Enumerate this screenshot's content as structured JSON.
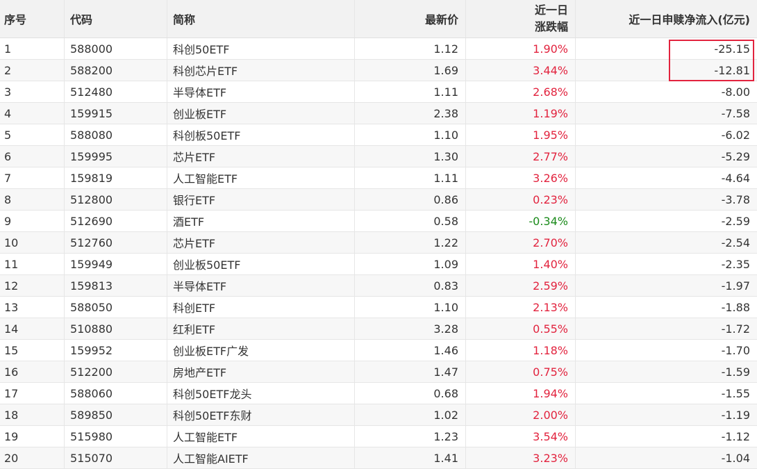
{
  "header": {
    "idx": "序号",
    "code": "代码",
    "name": "简称",
    "price": "最新价",
    "change_line1": "近一日",
    "change_line2": "涨跌幅",
    "flow": "近一日申赎净流入(亿元)"
  },
  "colors": {
    "up": "#e2233e",
    "down": "#1a8a1a",
    "highlight": "#e2233e"
  },
  "rows": [
    {
      "idx": "1",
      "code": "588000",
      "name": "科创50ETF",
      "price": "1.12",
      "change": "1.90%",
      "dir": "up",
      "flow": "-25.15"
    },
    {
      "idx": "2",
      "code": "588200",
      "name": "科创芯片ETF",
      "price": "1.69",
      "change": "3.44%",
      "dir": "up",
      "flow": "-12.81"
    },
    {
      "idx": "3",
      "code": "512480",
      "name": "半导体ETF",
      "price": "1.11",
      "change": "2.68%",
      "dir": "up",
      "flow": "-8.00"
    },
    {
      "idx": "4",
      "code": "159915",
      "name": "创业板ETF",
      "price": "2.38",
      "change": "1.19%",
      "dir": "up",
      "flow": "-7.58"
    },
    {
      "idx": "5",
      "code": "588080",
      "name": "科创板50ETF",
      "price": "1.10",
      "change": "1.95%",
      "dir": "up",
      "flow": "-6.02"
    },
    {
      "idx": "6",
      "code": "159995",
      "name": "芯片ETF",
      "price": "1.30",
      "change": "2.77%",
      "dir": "up",
      "flow": "-5.29"
    },
    {
      "idx": "7",
      "code": "159819",
      "name": "人工智能ETF",
      "price": "1.11",
      "change": "3.26%",
      "dir": "up",
      "flow": "-4.64"
    },
    {
      "idx": "8",
      "code": "512800",
      "name": "银行ETF",
      "price": "0.86",
      "change": "0.23%",
      "dir": "up",
      "flow": "-3.78"
    },
    {
      "idx": "9",
      "code": "512690",
      "name": "酒ETF",
      "price": "0.58",
      "change": "-0.34%",
      "dir": "down",
      "flow": "-2.59"
    },
    {
      "idx": "10",
      "code": "512760",
      "name": "芯片ETF",
      "price": "1.22",
      "change": "2.70%",
      "dir": "up",
      "flow": "-2.54"
    },
    {
      "idx": "11",
      "code": "159949",
      "name": "创业板50ETF",
      "price": "1.09",
      "change": "1.40%",
      "dir": "up",
      "flow": "-2.35"
    },
    {
      "idx": "12",
      "code": "159813",
      "name": "半导体ETF",
      "price": "0.83",
      "change": "2.59%",
      "dir": "up",
      "flow": "-1.97"
    },
    {
      "idx": "13",
      "code": "588050",
      "name": "科创ETF",
      "price": "1.10",
      "change": "2.13%",
      "dir": "up",
      "flow": "-1.88"
    },
    {
      "idx": "14",
      "code": "510880",
      "name": "红利ETF",
      "price": "3.28",
      "change": "0.55%",
      "dir": "up",
      "flow": "-1.72"
    },
    {
      "idx": "15",
      "code": "159952",
      "name": "创业板ETF广发",
      "price": "1.46",
      "change": "1.18%",
      "dir": "up",
      "flow": "-1.70"
    },
    {
      "idx": "16",
      "code": "512200",
      "name": "房地产ETF",
      "price": "1.47",
      "change": "0.75%",
      "dir": "up",
      "flow": "-1.59"
    },
    {
      "idx": "17",
      "code": "588060",
      "name": "科创50ETF龙头",
      "price": "0.68",
      "change": "1.94%",
      "dir": "up",
      "flow": "-1.55"
    },
    {
      "idx": "18",
      "code": "589850",
      "name": "科创50ETF东财",
      "price": "1.02",
      "change": "2.00%",
      "dir": "up",
      "flow": "-1.19"
    },
    {
      "idx": "19",
      "code": "515980",
      "name": "人工智能ETF",
      "price": "1.23",
      "change": "3.54%",
      "dir": "up",
      "flow": "-1.12"
    },
    {
      "idx": "20",
      "code": "515070",
      "name": "人工智能AIETF",
      "price": "1.41",
      "change": "3.23%",
      "dir": "up",
      "flow": "-1.04"
    }
  ]
}
